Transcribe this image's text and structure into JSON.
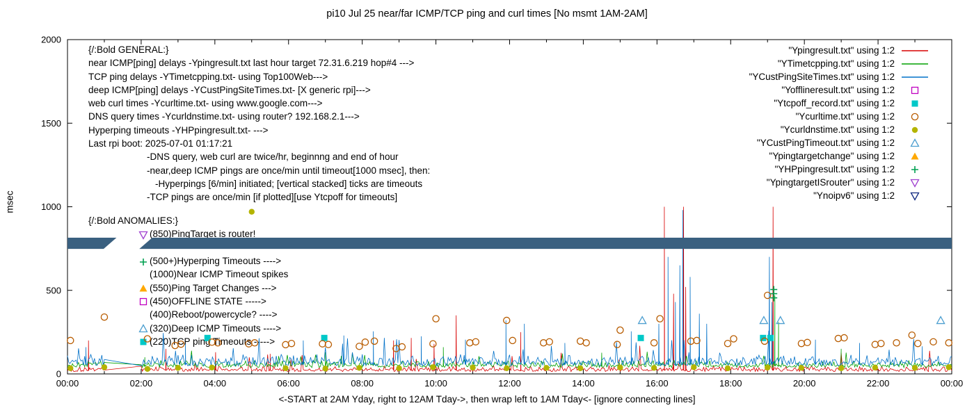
{
  "title": "pi10 Jul 25  near/far ICMP/TCP ping and curl times [No msmt 1AM-2AM]",
  "ylabel": "msec",
  "xlabel": "<-START at 2AM Yday, right to 12AM Tday->, then wrap left to 1AM Tday<- [ignore connecting lines]",
  "legend": [
    {
      "label": "\"Ypingresult.txt\" using 1:2",
      "sample": "line",
      "color": "#d80000"
    },
    {
      "label": "\"YTimetcpping.txt\" using 1:2",
      "sample": "line",
      "color": "#00a000"
    },
    {
      "label": "\"YCustPingSiteTimes.txt\" using 1:2",
      "sample": "line",
      "color": "#0070c8"
    },
    {
      "label": "\"Yofflineresult.txt\" using 1:2",
      "sample": "square-open",
      "color": "#c000c0"
    },
    {
      "label": "\"Ytcpoff_record.txt\" using 1:2",
      "sample": "square-filled",
      "color": "#00c8c8"
    },
    {
      "label": "\"Ycurltime.txt\" using 1:2",
      "sample": "circle-open",
      "color": "#b85c00"
    },
    {
      "label": "\"Ycurldnstime.txt\" using 1:2",
      "sample": "circle-filled",
      "color": "#b4b400"
    },
    {
      "label": "\"YCustPingTimeout.txt\" using 1:2",
      "sample": "triangle-open",
      "color": "#4d9fd0"
    },
    {
      "label": "\"Ypingtargetchange\" using 1:2",
      "sample": "triangle-filled",
      "color": "#ffa800"
    },
    {
      "label": "\"YHPpingresult.txt\" using 1:2",
      "sample": "plus",
      "color": "#00a050"
    },
    {
      "label": "\"YpingtargetISrouter\" using 1:2",
      "sample": "nabla-open",
      "color": "#a040d0"
    },
    {
      "label": "\"Ynoipv6\" using 1:2",
      "sample": "nabla-open",
      "color": "#102880"
    }
  ],
  "annotations": {
    "general": [
      {
        "text": "{/:Bold GENERAL:}",
        "indent": 0
      },
      {
        "text": "near ICMP[ping] delays -Ypingresult.txt last hour target 72.31.6.219 hop#4 --->",
        "indent": 0
      },
      {
        "text": "TCP ping delays -YTimetcpping.txt- using Top100Web--->",
        "indent": 0
      },
      {
        "text": "deep ICMP[ping] delays -YCustPingSiteTimes.txt- [X generic rpi]--->",
        "indent": 0
      },
      {
        "text": "web curl times -Ycurltime.txt- using www.google.com--->",
        "indent": 0
      },
      {
        "text": "DNS query times -Ycurldnstime.txt- using router? 192.168.2.1--->",
        "indent": 0
      },
      {
        "text": "Hyperping timeouts -YHPpingresult.txt- --->",
        "indent": 0
      },
      {
        "text": "Last rpi boot: 2025-07-01 01:17:21",
        "indent": 0
      },
      {
        "text": "-DNS query, web curl are twice/hr, beginnng and end of hour",
        "indent": 1
      },
      {
        "text": "-near,deep ICMP pings are once/min until timeout[1000 msec], then:",
        "indent": 1
      },
      {
        "text": "-Hyperpings [6/min] initiated; [vertical stacked] ticks are timeouts",
        "indent": 2
      },
      {
        "text": "-TCP pings are once/min [if plotted][use Ytcpoff for timeouts]",
        "indent": 1
      }
    ],
    "anomalies_header": "{/:Bold ANOMALIES:}",
    "anomalies": [
      {
        "marker": "nabla-open",
        "color": "#a040d0",
        "text": "(850)PingTarget is router!"
      },
      {
        "marker": null,
        "color": null,
        "text": ""
      },
      {
        "marker": "plus",
        "color": "#00a050",
        "text": "(500+)Hyperping Timeouts ---->"
      },
      {
        "marker": null,
        "color": null,
        "text": "(1000)Near ICMP Timeout spikes"
      },
      {
        "marker": "triangle-filled",
        "color": "#ffa800",
        "text": "(550)Ping Target Changes --->"
      },
      {
        "marker": "square-open",
        "color": "#c000c0",
        "text": "(450)OFFLINE STATE ----->"
      },
      {
        "marker": null,
        "color": null,
        "text": "(400)Reboot/powercycle? ---->"
      },
      {
        "marker": "triangle-open",
        "color": "#4d9fd0",
        "text": "(320)Deep ICMP Timeouts ---->"
      },
      {
        "marker": "square-filled",
        "color": "#00c8c8",
        "text": "(220)TCP ping Timeouts ----->"
      }
    ]
  },
  "chart_data": {
    "type": "line",
    "x_unit": "hours",
    "xlim": [
      0,
      24
    ],
    "ylim": [
      0,
      2000
    ],
    "yticks": [
      0,
      500,
      1000,
      1500,
      2000
    ],
    "xtick_hours": [
      0,
      2,
      4,
      6,
      8,
      10,
      12,
      14,
      16,
      18,
      20,
      22,
      24
    ],
    "xtick_labels": [
      "00:00",
      "02:00",
      "04:00",
      "06:00",
      "08:00",
      "10:00",
      "12:00",
      "14:00",
      "16:00",
      "18:00",
      "20:00",
      "22:00",
      "00:00"
    ],
    "measurement_gap_hours": [
      1,
      2
    ],
    "series": [
      {
        "name": "Ypingresult.txt",
        "style": "line",
        "color": "#d80000",
        "noise": {
          "seed": 101,
          "base": 14,
          "jit": 38,
          "spike_p": 0.03,
          "spike_amp": 130
        },
        "spikes": [
          [
            0.57,
            200
          ],
          [
            2.67,
            150
          ],
          [
            4.02,
            130
          ],
          [
            5.5,
            120
          ],
          [
            8.85,
            200
          ],
          [
            9.33,
            215
          ],
          [
            9.95,
            180
          ],
          [
            10.55,
            350
          ],
          [
            12.3,
            250
          ],
          [
            16.2,
            1000
          ],
          [
            16.45,
            480
          ],
          [
            16.72,
            1000
          ],
          [
            16.78,
            520
          ],
          [
            19.15,
            1000
          ]
        ]
      },
      {
        "name": "YTimetcpping.txt",
        "style": "line",
        "color": "#00a000",
        "noise": {
          "seed": 202,
          "base": 38,
          "jit": 48,
          "spike_p": 0.03,
          "spike_amp": 90
        },
        "spikes": [
          [
            2.1,
            100
          ],
          [
            7.0,
            130
          ],
          [
            10.2,
            160
          ],
          [
            14.5,
            120
          ],
          [
            19.2,
            470
          ],
          [
            19.3,
            310
          ],
          [
            21.0,
            150
          ]
        ]
      },
      {
        "name": "YCustPingSiteTimes.txt",
        "style": "line",
        "color": "#0070c8",
        "noise": {
          "seed": 303,
          "base": 48,
          "jit": 75,
          "spike_p": 0.05,
          "spike_amp": 170
        },
        "spikes": [
          [
            0.5,
            160
          ],
          [
            3.2,
            180
          ],
          [
            6.4,
            200
          ],
          [
            7.5,
            230
          ],
          [
            8.3,
            255
          ],
          [
            9.6,
            225
          ],
          [
            10.8,
            205
          ],
          [
            11.9,
            320
          ],
          [
            12.4,
            300
          ],
          [
            13.5,
            185
          ],
          [
            15.3,
            255
          ],
          [
            16.05,
            300
          ],
          [
            16.3,
            700
          ],
          [
            16.5,
            430
          ],
          [
            16.62,
            650
          ],
          [
            16.7,
            980
          ],
          [
            16.9,
            580
          ],
          [
            17.15,
            360
          ],
          [
            17.35,
            300
          ],
          [
            19.05,
            700
          ],
          [
            19.12,
            430
          ],
          [
            20.3,
            205
          ],
          [
            21.5,
            185
          ],
          [
            23.2,
            165
          ]
        ]
      },
      {
        "name": "Yofflineresult.txt",
        "style": "points",
        "marker": "square-open",
        "color": "#c000c0",
        "points": []
      },
      {
        "name": "Ytcpoff_record.txt",
        "style": "points",
        "marker": "square-filled",
        "color": "#00c8c8",
        "points": [
          [
            3.8,
            215
          ],
          [
            6.97,
            215
          ],
          [
            15.56,
            215
          ],
          [
            18.88,
            215
          ],
          [
            19.08,
            215
          ]
        ]
      },
      {
        "name": "Ycurltime.txt",
        "style": "points",
        "marker": "circle-open",
        "color": "#b85c00",
        "points": [
          [
            0.08,
            200
          ],
          [
            1.0,
            340
          ],
          [
            2.17,
            210
          ],
          [
            2.92,
            170
          ],
          [
            3.08,
            178
          ],
          [
            3.92,
            190
          ],
          [
            4.08,
            186
          ],
          [
            4.92,
            180
          ],
          [
            5.08,
            186
          ],
          [
            5.92,
            175
          ],
          [
            6.08,
            182
          ],
          [
            6.92,
            180
          ],
          [
            7.08,
            176
          ],
          [
            7.92,
            165
          ],
          [
            8.08,
            190
          ],
          [
            8.33,
            196
          ],
          [
            8.92,
            152
          ],
          [
            9.08,
            162
          ],
          [
            9.92,
            180
          ],
          [
            10.0,
            330
          ],
          [
            10.92,
            186
          ],
          [
            11.08,
            192
          ],
          [
            11.92,
            320
          ],
          [
            12.08,
            200
          ],
          [
            12.92,
            186
          ],
          [
            13.08,
            192
          ],
          [
            13.92,
            196
          ],
          [
            14.08,
            186
          ],
          [
            14.92,
            176
          ],
          [
            15.0,
            262
          ],
          [
            15.92,
            186
          ],
          [
            16.08,
            330
          ],
          [
            16.92,
            196
          ],
          [
            17.08,
            200
          ],
          [
            17.92,
            182
          ],
          [
            18.08,
            210
          ],
          [
            18.92,
            196
          ],
          [
            19.0,
            470
          ],
          [
            19.92,
            182
          ],
          [
            20.08,
            188
          ],
          [
            20.92,
            212
          ],
          [
            21.08,
            216
          ],
          [
            21.92,
            176
          ],
          [
            22.08,
            182
          ],
          [
            22.5,
            186
          ],
          [
            22.92,
            232
          ],
          [
            23.08,
            182
          ],
          [
            23.5,
            192
          ],
          [
            23.92,
            186
          ]
        ]
      },
      {
        "name": "Ycurldnstime.txt",
        "style": "points",
        "marker": "circle-filled",
        "color": "#b4b400",
        "points": [
          [
            0.08,
            34
          ],
          [
            1.0,
            40
          ],
          [
            2.17,
            30
          ],
          [
            3.0,
            36
          ],
          [
            3.92,
            38
          ],
          [
            5.0,
            970
          ],
          [
            5.92,
            34
          ],
          [
            7.0,
            32
          ],
          [
            7.92,
            36
          ],
          [
            9.0,
            34
          ],
          [
            9.92,
            40
          ],
          [
            11.0,
            38
          ],
          [
            11.92,
            34
          ],
          [
            13.0,
            36
          ],
          [
            13.92,
            34
          ],
          [
            15.0,
            38
          ],
          [
            15.92,
            36
          ],
          [
            17.0,
            40
          ],
          [
            17.92,
            34
          ],
          [
            19.0,
            38
          ],
          [
            19.92,
            36
          ],
          [
            21.0,
            34
          ],
          [
            21.92,
            38
          ],
          [
            23.0,
            36
          ],
          [
            23.92,
            40
          ]
        ]
      },
      {
        "name": "YCustPingTimeout.txt",
        "style": "points",
        "marker": "triangle-open",
        "color": "#4d9fd0",
        "points": [
          [
            15.6,
            320
          ],
          [
            18.9,
            320
          ],
          [
            19.35,
            320
          ],
          [
            23.7,
            320
          ]
        ]
      },
      {
        "name": "Ypingtargetchange",
        "style": "points",
        "marker": "triangle-filled",
        "color": "#ffa800",
        "points": []
      },
      {
        "name": "YHPpingresult.txt",
        "style": "points",
        "marker": "plus",
        "color": "#00a050",
        "points": [
          [
            19.17,
            455
          ],
          [
            19.17,
            480
          ],
          [
            19.17,
            505
          ]
        ]
      },
      {
        "name": "YpingtargetISrouter",
        "style": "points",
        "marker": "nabla-open",
        "color": "#a040d0",
        "points": []
      },
      {
        "name": "Ynoipv6",
        "style": "band",
        "color": "#3a6080",
        "band": {
          "y_range": [
            748,
            815
          ],
          "gap": [
            0.98,
            1.95
          ],
          "slant": 0.35
        }
      }
    ]
  }
}
